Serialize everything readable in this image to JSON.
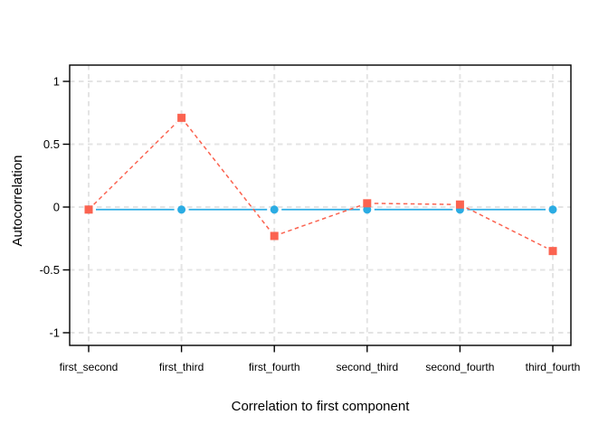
{
  "page": {
    "background_color": "#FFFFFF",
    "text_color": "#000000"
  },
  "chart_data": {
    "type": "line",
    "title": "",
    "xlabel": "Correlation to first component",
    "ylabel": "Autocorrelation",
    "categories": [
      "first_second",
      "first_third",
      "first_fourth",
      "second_third",
      "second_fourth",
      "third_fourth"
    ],
    "series": [
      {
        "name": "blue_circles_series",
        "marker": "circle",
        "line_style": "solid",
        "color": "#2BACE3",
        "values": [
          -0.02,
          -0.02,
          -0.02,
          -0.02,
          -0.02,
          -0.02
        ]
      },
      {
        "name": "red_squares_series",
        "marker": "square",
        "line_style": "dashed",
        "color": "#FB6350",
        "values": [
          -0.02,
          0.71,
          -0.23,
          0.03,
          0.02,
          -0.35
        ]
      }
    ],
    "y_ticks": {
      "values": [
        1,
        0.5,
        0,
        -0.5,
        -1
      ],
      "labels": [
        "1",
        "0.5",
        "0",
        "-0.5",
        "-1"
      ]
    },
    "ylim": [
      -1.1,
      1.13
    ],
    "grid": {
      "style": "dashed",
      "color": "#E4E4E4"
    },
    "axis_color": "#000000",
    "tick_label_color": "#000000",
    "legend": "none"
  }
}
